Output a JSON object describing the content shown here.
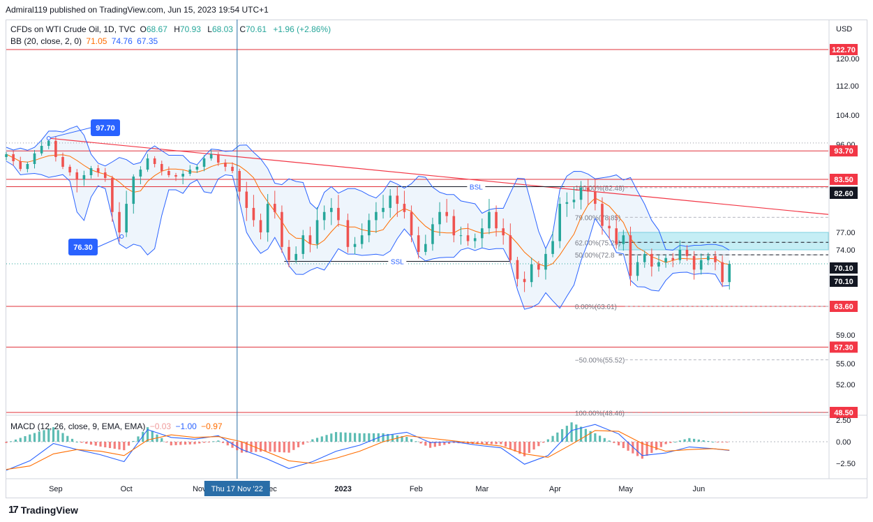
{
  "header": {
    "published": "Admiral119 published on TradingView.com, Jun 15, 2023 19:54 UTC+1"
  },
  "legend": {
    "symbol": "CFDs on WTI Crude Oil, 1D, TVC",
    "o_label": "O",
    "o": "68.67",
    "h_label": "H",
    "h": "70.93",
    "l_label": "L",
    "l": "68.03",
    "c_label": "C",
    "c": "70.61",
    "change": "+1.96 (+2.86%)",
    "bb_label": "BB (20, close, 2, 0)",
    "bb_basis": "71.05",
    "bb_upper": "74.76",
    "bb_lower": "67.35",
    "macd_label": "MACD (12, 26, close, 9, EMA, EMA)",
    "macd_hist": "−0.03",
    "macd_line": "−1.00",
    "macd_signal": "−0.97"
  },
  "footer": {
    "brand": "TradingView",
    "logo_text": "17"
  },
  "colors": {
    "bull": "#26a69a",
    "bear": "#ef5350",
    "bb_band": "#2962ff",
    "bb_basis": "#ff6d00",
    "bb_fill": "#eaf2fb",
    "level_line": "#e0303a",
    "trend_line": "#f23645",
    "crosshair": "#2a6ea8",
    "label_red": "#f23645",
    "label_black": "#131722",
    "label_blue": "#2962ff",
    "zone_fill": "#9fe3f0",
    "macd_line": "#2962ff",
    "signal_line": "#ff6d00"
  },
  "chart_data": {
    "type": "candlestick",
    "instrument": "CFDs on WTI Crude Oil",
    "timeframe": "1D",
    "currency": "USD",
    "price_axis": {
      "unit": "USD",
      "ticks": [
        "120.00",
        "112.00",
        "104.00",
        "96.00",
        "83.50",
        "77.00",
        "74.00",
        "70.10",
        "63.60",
        "59.00",
        "55.00",
        "52.00",
        "48.50"
      ],
      "ylim": [
        47,
        125
      ]
    },
    "time_axis": {
      "ticks": [
        {
          "label": "Sep",
          "date": "2022-09-01"
        },
        {
          "label": "Oct",
          "date": "2022-10-01"
        },
        {
          "label": "Nov",
          "date": "2022-11-01"
        },
        {
          "label": "Dec",
          "date": "2022-12-01"
        },
        {
          "label": "2023",
          "date": "2023-01-01",
          "bold": true
        },
        {
          "label": "Feb",
          "date": "2023-02-01"
        },
        {
          "label": "Mar",
          "date": "2023-03-01"
        },
        {
          "label": "Apr",
          "date": "2023-04-01"
        },
        {
          "label": "May",
          "date": "2023-05-01"
        },
        {
          "label": "Jun",
          "date": "2023-06-01"
        }
      ],
      "range": [
        "2022-08-11",
        "2023-07-26"
      ],
      "crosshair_date": "2022-11-17",
      "crosshair_label": "Thu 17 Nov '22"
    },
    "close_series": [
      [
        "2022-08-11",
        92.5
      ],
      [
        "2022-08-14",
        90.0
      ],
      [
        "2022-08-17",
        87.2
      ],
      [
        "2022-08-20",
        89.0
      ],
      [
        "2022-08-23",
        92.8
      ],
      [
        "2022-08-26",
        95.5
      ],
      [
        "2022-08-29",
        97.0
      ],
      [
        "2022-09-01",
        91.5
      ],
      [
        "2022-09-04",
        88.0
      ],
      [
        "2022-09-07",
        86.0
      ],
      [
        "2022-09-10",
        83.5
      ],
      [
        "2022-09-13",
        85.0
      ],
      [
        "2022-09-16",
        87.5
      ],
      [
        "2022-09-19",
        86.0
      ],
      [
        "2022-09-22",
        84.0
      ],
      [
        "2022-09-25",
        79.5
      ],
      [
        "2022-09-28",
        77.0
      ],
      [
        "2022-10-01",
        80.5
      ],
      [
        "2022-10-04",
        84.5
      ],
      [
        "2022-10-07",
        87.0
      ],
      [
        "2022-10-10",
        91.0
      ],
      [
        "2022-10-13",
        89.0
      ],
      [
        "2022-10-16",
        86.5
      ],
      [
        "2022-10-19",
        85.0
      ],
      [
        "2022-10-22",
        84.5
      ],
      [
        "2022-10-25",
        85.5
      ],
      [
        "2022-10-28",
        87.0
      ],
      [
        "2022-10-31",
        88.0
      ],
      [
        "2022-11-03",
        91.0
      ],
      [
        "2022-11-06",
        92.5
      ],
      [
        "2022-11-09",
        89.5
      ],
      [
        "2022-11-12",
        88.0
      ],
      [
        "2022-11-15",
        86.5
      ],
      [
        "2022-11-18",
        82.0
      ],
      [
        "2022-11-21",
        80.0
      ],
      [
        "2022-11-24",
        78.5
      ],
      [
        "2022-11-27",
        77.0
      ],
      [
        "2022-11-30",
        80.5
      ],
      [
        "2022-12-03",
        79.5
      ],
      [
        "2022-12-06",
        74.5
      ],
      [
        "2022-12-09",
        71.5
      ],
      [
        "2022-12-12",
        73.0
      ],
      [
        "2022-12-15",
        76.5
      ],
      [
        "2022-12-18",
        75.0
      ],
      [
        "2022-12-21",
        78.5
      ],
      [
        "2022-12-24",
        79.5
      ],
      [
        "2022-12-27",
        80.0
      ],
      [
        "2022-12-30",
        78.5
      ],
      [
        "2023-01-03",
        74.5
      ],
      [
        "2023-01-06",
        75.0
      ],
      [
        "2023-01-09",
        76.5
      ],
      [
        "2023-01-12",
        78.5
      ],
      [
        "2023-01-15",
        79.5
      ],
      [
        "2023-01-18",
        80.0
      ],
      [
        "2023-01-21",
        81.5
      ],
      [
        "2023-01-24",
        80.5
      ],
      [
        "2023-01-27",
        79.5
      ],
      [
        "2023-01-30",
        76.5
      ],
      [
        "2023-02-02",
        73.5
      ],
      [
        "2023-02-05",
        75.0
      ],
      [
        "2023-02-08",
        78.0
      ],
      [
        "2023-02-11",
        79.5
      ],
      [
        "2023-02-14",
        79.0
      ],
      [
        "2023-02-17",
        76.5
      ],
      [
        "2023-02-20",
        76.5
      ],
      [
        "2023-02-23",
        75.5
      ],
      [
        "2023-02-26",
        76.0
      ],
      [
        "2023-03-01",
        77.5
      ],
      [
        "2023-03-04",
        79.5
      ],
      [
        "2023-03-07",
        77.5
      ],
      [
        "2023-03-10",
        76.5
      ],
      [
        "2023-03-13",
        71.5
      ],
      [
        "2023-03-16",
        68.0
      ],
      [
        "2023-03-19",
        67.5
      ],
      [
        "2023-03-22",
        70.5
      ],
      [
        "2023-03-25",
        69.5
      ],
      [
        "2023-03-28",
        73.0
      ],
      [
        "2023-03-31",
        75.5
      ],
      [
        "2023-04-03",
        80.5
      ],
      [
        "2023-04-06",
        80.7
      ],
      [
        "2023-04-09",
        81.0
      ],
      [
        "2023-04-12",
        82.5
      ],
      [
        "2023-04-15",
        82.0
      ],
      [
        "2023-04-18",
        80.5
      ],
      [
        "2023-04-21",
        77.8
      ],
      [
        "2023-04-24",
        77.5
      ],
      [
        "2023-04-27",
        75.0
      ],
      [
        "2023-04-30",
        76.5
      ],
      [
        "2023-05-03",
        68.5
      ],
      [
        "2023-05-06",
        71.0
      ],
      [
        "2023-05-09",
        73.0
      ],
      [
        "2023-05-12",
        70.0
      ],
      [
        "2023-05-15",
        71.0
      ],
      [
        "2023-05-18",
        72.0
      ],
      [
        "2023-05-21",
        71.5
      ],
      [
        "2023-05-24",
        74.0
      ],
      [
        "2023-05-27",
        72.5
      ],
      [
        "2023-05-30",
        69.5
      ],
      [
        "2023-06-02",
        71.5
      ],
      [
        "2023-06-05",
        72.5
      ],
      [
        "2023-06-08",
        71.0
      ],
      [
        "2023-06-11",
        67.5
      ],
      [
        "2023-06-14",
        70.6
      ]
    ],
    "horizontal_levels": [
      {
        "price": 122.7,
        "label": "122.70"
      },
      {
        "price": 93.7,
        "label": "93.70"
      },
      {
        "price": 83.5,
        "label": "83.50"
      },
      {
        "price": 82.6,
        "label": "82.60"
      },
      {
        "price": 63.6,
        "label": "63.60"
      },
      {
        "price": 57.3,
        "label": "57.30"
      },
      {
        "price": 48.5,
        "label": "48.50"
      }
    ],
    "price_labels": [
      {
        "price": 70.1,
        "label": "70.10"
      },
      {
        "price": 70.1,
        "label": "70.10"
      }
    ],
    "fibonacci": [
      {
        "price": 82.48,
        "label": "100.00%(82.48)"
      },
      {
        "price": 78.85,
        "label": "79.00%(78.85)"
      },
      {
        "price": 75.29,
        "label": "62.00%(75.29)"
      },
      {
        "price": 72.8,
        "label": "50.00%(72.8"
      },
      {
        "price": 63.61,
        "label": "0.00%(63.61)"
      },
      {
        "price": 55.52,
        "label": "−50.00%(55.52)"
      },
      {
        "price": 48.46,
        "label": "100.00%(48.46)"
      }
    ],
    "annotations": [
      {
        "text": "97.70",
        "date": "2022-08-29",
        "price": 97.7
      },
      {
        "text": "76.30",
        "date": "2022-09-29",
        "price": 76.3
      },
      {
        "text": "BSL",
        "date_from": "2023-01-20",
        "date_to": "2023-04-05",
        "price": 82.6
      },
      {
        "text": "SSL",
        "date_from": "2022-12-07",
        "date_to": "2023-03-13",
        "price": 71.2
      }
    ],
    "trend_line": {
      "from": [
        "2022-08-29",
        97.7
      ],
      "to": [
        "2023-07-26",
        79.2
      ]
    },
    "supply_zone": {
      "from": "2023-04-28",
      "to": "2023-07-26",
      "price_low": 74.0,
      "price_high": 77.0
    },
    "dashed_levels": [
      75.29,
      72.8
    ],
    "macd": {
      "axis_ticks": [
        "2.50",
        "0.00",
        "−2.50"
      ],
      "ylim": [
        -3.8,
        2.8
      ],
      "line": [
        [
          "2022-08-11",
          -3.3
        ],
        [
          "2022-08-21",
          -2.2
        ],
        [
          "2022-08-31",
          -0.2
        ],
        [
          "2022-09-10",
          -0.9
        ],
        [
          "2022-09-20",
          -1.5
        ],
        [
          "2022-09-30",
          -2.3
        ],
        [
          "2022-10-10",
          1.4
        ],
        [
          "2022-10-20",
          0.5
        ],
        [
          "2022-10-30",
          0.3
        ],
        [
          "2022-11-09",
          0.7
        ],
        [
          "2022-11-19",
          -0.9
        ],
        [
          "2022-11-29",
          -1.9
        ],
        [
          "2022-12-09",
          -3.1
        ],
        [
          "2022-12-19",
          -2.3
        ],
        [
          "2022-12-29",
          -1.1
        ],
        [
          "2023-01-08",
          -0.4
        ],
        [
          "2023-01-18",
          0.7
        ],
        [
          "2023-01-28",
          1.1
        ],
        [
          "2023-02-07",
          -0.1
        ],
        [
          "2023-02-17",
          0.0
        ],
        [
          "2023-02-27",
          -0.4
        ],
        [
          "2023-03-09",
          -0.7
        ],
        [
          "2023-03-19",
          -2.6
        ],
        [
          "2023-03-29",
          -1.6
        ],
        [
          "2023-04-08",
          1.3
        ],
        [
          "2023-04-18",
          2.0
        ],
        [
          "2023-04-28",
          0.9
        ],
        [
          "2023-05-08",
          -1.6
        ],
        [
          "2023-05-18",
          -1.3
        ],
        [
          "2023-05-28",
          -0.6
        ],
        [
          "2023-06-07",
          -0.8
        ],
        [
          "2023-06-14",
          -1.0
        ]
      ],
      "signal": [
        [
          "2022-08-11",
          -3.2
        ],
        [
          "2022-08-21",
          -2.8
        ],
        [
          "2022-08-31",
          -1.4
        ],
        [
          "2022-09-10",
          -0.9
        ],
        [
          "2022-09-20",
          -1.1
        ],
        [
          "2022-09-30",
          -1.6
        ],
        [
          "2022-10-10",
          0.2
        ],
        [
          "2022-10-20",
          0.8
        ],
        [
          "2022-10-30",
          0.5
        ],
        [
          "2022-11-09",
          0.6
        ],
        [
          "2022-11-19",
          0.0
        ],
        [
          "2022-11-29",
          -1.1
        ],
        [
          "2022-12-09",
          -2.2
        ],
        [
          "2022-12-19",
          -2.5
        ],
        [
          "2022-12-29",
          -1.9
        ],
        [
          "2023-01-08",
          -1.1
        ],
        [
          "2023-01-18",
          0.0
        ],
        [
          "2023-01-28",
          0.7
        ],
        [
          "2023-02-07",
          0.4
        ],
        [
          "2023-02-17",
          0.1
        ],
        [
          "2023-02-27",
          -0.2
        ],
        [
          "2023-03-09",
          -0.5
        ],
        [
          "2023-03-19",
          -1.4
        ],
        [
          "2023-03-29",
          -1.8
        ],
        [
          "2023-04-08",
          -0.3
        ],
        [
          "2023-04-18",
          1.3
        ],
        [
          "2023-04-28",
          1.2
        ],
        [
          "2023-05-08",
          -0.2
        ],
        [
          "2023-05-18",
          -1.1
        ],
        [
          "2023-05-28",
          -0.9
        ],
        [
          "2023-06-07",
          -0.8
        ],
        [
          "2023-06-14",
          -0.97
        ]
      ]
    }
  }
}
